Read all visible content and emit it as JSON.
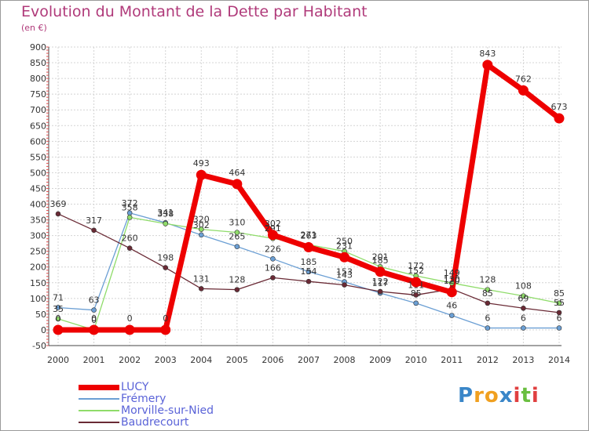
{
  "header": {
    "title": "Evolution du Montant de la Dette par Habitant",
    "subtitle": "(en €)"
  },
  "chart_data": {
    "type": "line",
    "x": [
      2000,
      2001,
      2002,
      2003,
      2004,
      2005,
      2006,
      2007,
      2008,
      2009,
      2010,
      2011,
      2012,
      2013,
      2014
    ],
    "ylim": [
      -50,
      900
    ],
    "yticks": [
      -50,
      0,
      50,
      100,
      150,
      200,
      250,
      300,
      350,
      400,
      450,
      500,
      550,
      600,
      650,
      700,
      750,
      800,
      850,
      900
    ],
    "grid": true,
    "series": [
      {
        "name": "LUCY",
        "color": "#ee0000",
        "values": [
          0,
          0,
          0,
          0,
          493,
          464,
          302,
          263,
          231,
          185,
          152,
          120,
          843,
          762,
          673
        ]
      },
      {
        "name": "Frémery",
        "color": "#6b9fd4",
        "values": [
          71,
          63,
          372,
          341,
          302,
          265,
          226,
          185,
          153,
          117,
          85,
          46,
          6,
          6,
          6
        ]
      },
      {
        "name": "Morville-sur-Nied",
        "color": "#8fdc6a",
        "values": [
          35,
          0,
          358,
          338,
          320,
          310,
          291,
          271,
          250,
          201,
          172,
          149,
          128,
          108,
          85
        ]
      },
      {
        "name": "Baudrecourt",
        "color": "#6a2a35",
        "values": [
          369,
          317,
          260,
          198,
          131,
          128,
          166,
          154,
          143,
          122,
          111,
          130,
          85,
          69,
          55
        ]
      }
    ]
  },
  "brand": {
    "p": "P",
    "r": "r",
    "o": "o",
    "x": "x",
    "i1": "i",
    "t": "t",
    "i2": "i"
  }
}
